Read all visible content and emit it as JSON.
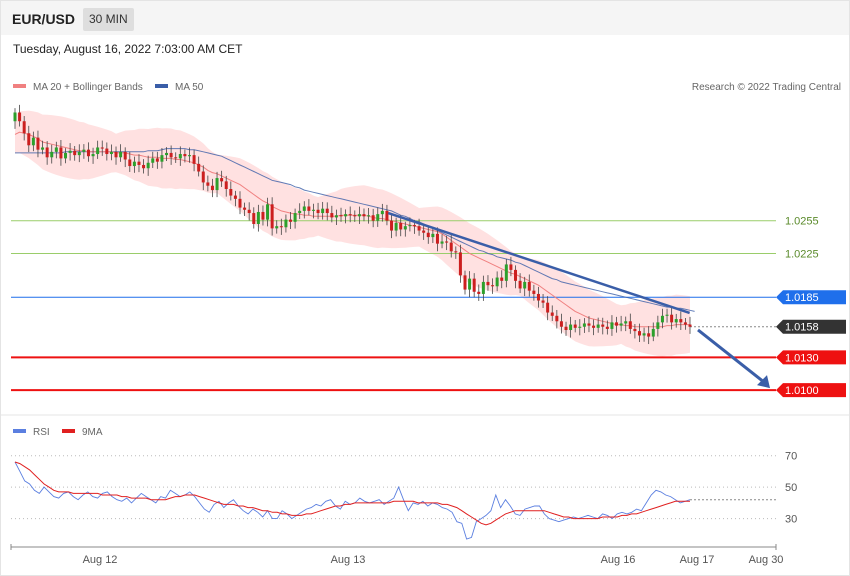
{
  "header": {
    "symbol": "EUR/USD",
    "timeframe": "30 MIN"
  },
  "timestamp": "Tuesday, August 16, 2022 7:03:00 AM CET",
  "legend": {
    "ma20": "MA 20 + Bollinger Bands",
    "ma50": "MA 50",
    "copyright": "Research © 2022 Trading Central",
    "rsi": "RSI",
    "rsi_ma": "9MA"
  },
  "colors": {
    "ma20": "#f08080",
    "ma50": "#3a5ea8",
    "band": "#ffd7d7",
    "up": "#2ca02c",
    "down": "#cc1f1f",
    "support": "#ee1111",
    "resistance": "#9acd6a",
    "pivot": "#1f6feb",
    "last": "#333333",
    "rsi": "#5b7fe0",
    "rsi_ma": "#e02020",
    "trend": "#3a5ea8"
  },
  "chart_data": [
    {
      "type": "candlestick",
      "pair": "EUR/USD",
      "timeframe": "30 MIN",
      "x_ticks": [
        "Aug 12",
        "Aug 13",
        "Aug 16",
        "Aug 17",
        "Aug 30"
      ],
      "ylim": [
        1.008,
        1.037
      ],
      "price_levels": [
        {
          "value": 1.0255,
          "label": "1.0255",
          "kind": "resistance"
        },
        {
          "value": 1.0225,
          "label": "1.0225",
          "kind": "resistance"
        },
        {
          "value": 1.0185,
          "label": "1.0185",
          "kind": "pivot"
        },
        {
          "value": 1.0158,
          "label": "1.0158",
          "kind": "last"
        },
        {
          "value": 1.013,
          "label": "1.0130",
          "kind": "support"
        },
        {
          "value": 1.01,
          "label": "1.0100",
          "kind": "support"
        }
      ],
      "close": [
        1.0354,
        1.0346,
        1.0335,
        1.0324,
        1.0331,
        1.032,
        1.0322,
        1.0313,
        1.0318,
        1.0322,
        1.0312,
        1.0317,
        1.0319,
        1.0315,
        1.0318,
        1.032,
        1.0314,
        1.0316,
        1.0322,
        1.0321,
        1.0316,
        1.0318,
        1.0313,
        1.0318,
        1.0311,
        1.0305,
        1.0309,
        1.0306,
        1.0303,
        1.0308,
        1.0312,
        1.0309,
        1.0315,
        1.0317,
        1.0313,
        1.0312,
        1.0316,
        1.0314,
        1.0315,
        1.0307,
        1.03,
        1.029,
        1.0287,
        1.0283,
        1.0294,
        1.0291,
        1.0284,
        1.0278,
        1.0275,
        1.0267,
        1.0265,
        1.0262,
        1.0252,
        1.0263,
        1.0256,
        1.027,
        1.0248,
        1.025,
        1.0249,
        1.0256,
        1.0254,
        1.0262,
        1.0264,
        1.0268,
        1.0264,
        1.0265,
        1.0262,
        1.0266,
        1.0262,
        1.0258,
        1.026,
        1.0259,
        1.0261,
        1.026,
        1.0259,
        1.0261,
        1.0259,
        1.026,
        1.0255,
        1.0261,
        1.0264,
        1.0255,
        1.0246,
        1.0253,
        1.0247,
        1.025,
        1.0251,
        1.025,
        1.0246,
        1.0244,
        1.024,
        1.0243,
        1.0234,
        1.0236,
        1.0235,
        1.0227,
        1.0226,
        1.0205,
        1.0192,
        1.0202,
        1.019,
        1.0188,
        1.0199,
        1.0196,
        1.0195,
        1.0203,
        1.02,
        1.0215,
        1.021,
        1.02,
        1.0193,
        1.0199,
        1.0191,
        1.0188,
        1.0182,
        1.018,
        1.0171,
        1.0168,
        1.0163,
        1.0158,
        1.0155,
        1.016,
        1.0157,
        1.0158,
        1.0161,
        1.0159,
        1.0157,
        1.016,
        1.0158,
        1.0156,
        1.0162,
        1.0159,
        1.0161,
        1.0163,
        1.0156,
        1.0154,
        1.015,
        1.0152,
        1.0149,
        1.0156,
        1.0162,
        1.0168,
        1.0169,
        1.0162,
        1.0165,
        1.0162,
        1.016,
        1.0158
      ],
      "ma20": [
        1.0334,
        1.0336,
        1.0335,
        1.0334,
        1.0332,
        1.033,
        1.0327,
        1.0326,
        1.0325,
        1.0324,
        1.0323,
        1.0322,
        1.0321,
        1.032,
        1.0319,
        1.0319,
        1.0318,
        1.0318,
        1.0318,
        1.0318,
        1.0318,
        1.0318,
        1.0317,
        1.0317,
        1.0317,
        1.0316,
        1.0315,
        1.0315,
        1.0314,
        1.0313,
        1.0313,
        1.0313,
        1.0312,
        1.0312,
        1.0312,
        1.0311,
        1.0311,
        1.031,
        1.0309,
        1.0308,
        1.0306,
        1.0304,
        1.0301,
        1.0299,
        1.0298,
        1.0296,
        1.0294,
        1.0292,
        1.029,
        1.0288,
        1.0285,
        1.0282,
        1.0279,
        1.0276,
        1.0273,
        1.0271,
        1.0268,
        1.0266,
        1.0264,
        1.0263,
        1.0262,
        1.0261,
        1.0261,
        1.026,
        1.026,
        1.0259,
        1.0259,
        1.0259,
        1.0259,
        1.0259,
        1.0259,
        1.026,
        1.026,
        1.026,
        1.026,
        1.026,
        1.026,
        1.0259,
        1.0258,
        1.0257,
        1.0257,
        1.0256,
        1.0255,
        1.0254,
        1.0253,
        1.0252,
        1.0251,
        1.025,
        1.0249,
        1.0248,
        1.0247,
        1.0246,
        1.0245,
        1.0243,
        1.024,
        1.0237,
        1.0234,
        1.0231,
        1.0228,
        1.0225,
        1.0223,
        1.0221,
        1.0219,
        1.0217,
        1.0215,
        1.0213,
        1.0211,
        1.0209,
        1.0207,
        1.0206,
        1.0204,
        1.0202,
        1.02,
        1.0198,
        1.0196,
        1.0193,
        1.019,
        1.0187,
        1.0184,
        1.0181,
        1.0178,
        1.0175,
        1.0172,
        1.017,
        1.0168,
        1.0166,
        1.0165,
        1.0164,
        1.0163,
        1.0162,
        1.0161,
        1.016,
        1.016,
        1.0159,
        1.0159,
        1.0158,
        1.0158,
        1.0158,
        1.0158,
        1.0158,
        1.0158,
        1.0158,
        1.0159,
        1.0159,
        1.016,
        1.016,
        1.016,
        1.016
      ],
      "ma50": [
        1.0317,
        1.0317,
        1.0317,
        1.0317,
        1.0317,
        1.0317,
        1.0317,
        1.0317,
        1.0317,
        1.0317,
        1.0317,
        1.0318,
        1.0318,
        1.0318,
        1.0318,
        1.0318,
        1.0318,
        1.0318,
        1.0318,
        1.0318,
        1.0318,
        1.0318,
        1.0318,
        1.0318,
        1.0318,
        1.0318,
        1.0318,
        1.0318,
        1.0318,
        1.0319,
        1.0319,
        1.0319,
        1.032,
        1.0321,
        1.0321,
        1.0321,
        1.0321,
        1.0321,
        1.032,
        1.032,
        1.0319,
        1.0318,
        1.0317,
        1.0316,
        1.0315,
        1.0314,
        1.0312,
        1.031,
        1.0308,
        1.0306,
        1.0304,
        1.0302,
        1.03,
        1.0298,
        1.0296,
        1.0294,
        1.0292,
        1.0291,
        1.029,
        1.0289,
        1.0288,
        1.0286,
        1.0285,
        1.0283,
        1.0282,
        1.0281,
        1.028,
        1.0279,
        1.0278,
        1.0277,
        1.0276,
        1.0275,
        1.0274,
        1.0273,
        1.0272,
        1.0271,
        1.027,
        1.0269,
        1.0268,
        1.0267,
        1.0266,
        1.0265,
        1.0264,
        1.0262,
        1.026,
        1.0259,
        1.0257,
        1.0255,
        1.0254,
        1.0252,
        1.025,
        1.0248,
        1.0246,
        1.0244,
        1.0242,
        1.024,
        1.0238,
        1.0236,
        1.0234,
        1.0232,
        1.023,
        1.0228,
        1.0227,
        1.0225,
        1.0224,
        1.0222,
        1.0221,
        1.022,
        1.0219,
        1.0217,
        1.0216,
        1.0214,
        1.0212,
        1.021,
        1.0208,
        1.0206,
        1.0204,
        1.0202,
        1.0201,
        1.0199,
        1.0198,
        1.0197,
        1.0196,
        1.0195,
        1.0194,
        1.0193,
        1.0192,
        1.0191,
        1.019,
        1.0189,
        1.0188,
        1.0187,
        1.0186,
        1.0185,
        1.0184,
        1.0183,
        1.0182,
        1.0181,
        1.018,
        1.0179,
        1.0178,
        1.0177,
        1.0176,
        1.0176,
        1.0175,
        1.0175,
        1.0174,
        1.0173,
        1.0172
      ],
      "bollinger_half_width": 0.0022,
      "trendline": {
        "from": [
          0.553,
          1.0262
        ],
        "to": [
          0.955,
          1.0167
        ]
      },
      "forecast_arrow": {
        "from_price": 1.0156,
        "to_price": 1.01
      }
    },
    {
      "type": "line",
      "name": "RSI",
      "ylim": [
        10,
        80
      ],
      "y_ticks": [
        70,
        50,
        30
      ],
      "series": [
        {
          "name": "RSI",
          "values": [
            66,
            60,
            54,
            52,
            48,
            46,
            50,
            47,
            44,
            43,
            46,
            47,
            44,
            42,
            45,
            47,
            44,
            43,
            46,
            47,
            44,
            42,
            41,
            43,
            40,
            43,
            46,
            44,
            42,
            40,
            44,
            43,
            48,
            46,
            44,
            45,
            47,
            44,
            40,
            36,
            34,
            39,
            41,
            37,
            40,
            42,
            38,
            35,
            33,
            36,
            34,
            31,
            35,
            30,
            30,
            35,
            33,
            30,
            32,
            34,
            36,
            37,
            39,
            38,
            41,
            42,
            38,
            36,
            41,
            39,
            40,
            43,
            41,
            40,
            41,
            42,
            39,
            41,
            43,
            50,
            42,
            35,
            40,
            39,
            41,
            38,
            40,
            39,
            37,
            36,
            34,
            28,
            27,
            17,
            18,
            28,
            30,
            32,
            35,
            45,
            37,
            42,
            38,
            33,
            32,
            36,
            37,
            38,
            38,
            33,
            30,
            29,
            28,
            29,
            30,
            31,
            30,
            31,
            32,
            31,
            30,
            33,
            32,
            30,
            33,
            34,
            33,
            34,
            36,
            35,
            40,
            45,
            48,
            47,
            45,
            44,
            42,
            40,
            41,
            42
          ]
        },
        {
          "name": "9MA",
          "values": [
            66,
            65,
            63,
            61,
            58,
            55,
            52,
            50,
            48,
            47,
            47,
            47,
            46,
            46,
            46,
            46,
            46,
            46,
            45,
            45,
            45,
            45,
            44,
            44,
            43,
            43,
            43,
            43,
            42,
            42,
            42,
            42,
            43,
            44,
            44,
            45,
            45,
            45,
            44,
            43,
            42,
            41,
            40,
            39,
            39,
            39,
            38,
            38,
            37,
            37,
            36,
            35,
            35,
            34,
            34,
            33,
            33,
            32,
            32,
            32,
            33,
            33,
            34,
            35,
            36,
            37,
            38,
            38,
            39,
            39,
            40,
            40,
            40,
            40,
            40,
            40,
            40,
            40,
            41,
            41,
            41,
            41,
            41,
            40,
            40,
            40,
            40,
            40,
            39,
            39,
            38,
            37,
            35,
            33,
            31,
            29,
            27,
            26,
            27,
            29,
            31,
            33,
            34,
            35,
            35,
            35,
            35,
            35,
            35,
            35,
            34,
            33,
            32,
            31,
            31,
            30,
            30,
            30,
            30,
            30,
            30,
            31,
            31,
            31,
            31,
            32,
            32,
            33,
            33,
            34,
            35,
            36,
            37,
            38,
            39,
            40,
            41,
            41,
            41,
            41
          ]
        }
      ]
    }
  ]
}
